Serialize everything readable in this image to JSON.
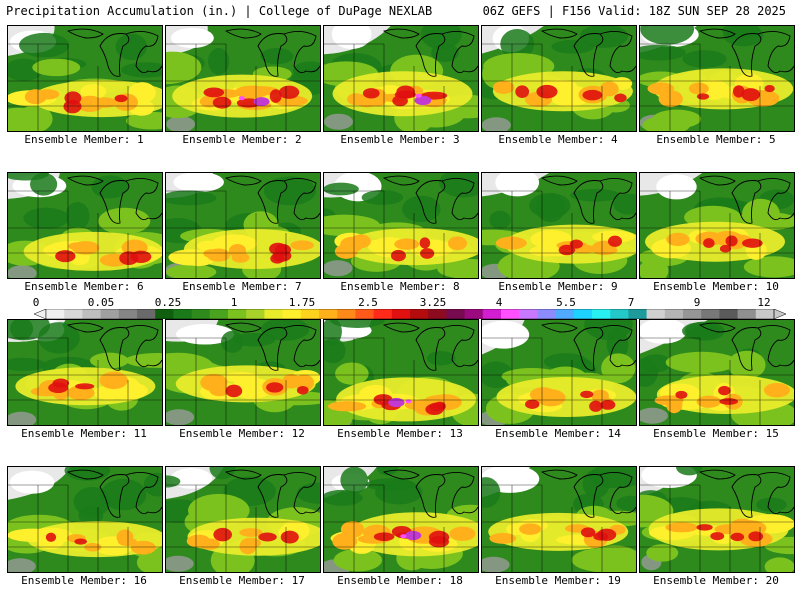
{
  "header": {
    "title_left": "Precipitation Accumulation (in.) | College of DuPage NEXLAB",
    "title_right": "06Z GEFS | F156 Valid: 18Z SUN SEP 28 2025"
  },
  "members": [
    {
      "label": "Ensemble Member: 1",
      "intensity": 0.45
    },
    {
      "label": "Ensemble Member: 2",
      "intensity": 0.75
    },
    {
      "label": "Ensemble Member: 3",
      "intensity": 0.85
    },
    {
      "label": "Ensemble Member: 4",
      "intensity": 0.6
    },
    {
      "label": "Ensemble Member: 5",
      "intensity": 0.65
    },
    {
      "label": "Ensemble Member: 6",
      "intensity": 0.55
    },
    {
      "label": "Ensemble Member: 7",
      "intensity": 0.6
    },
    {
      "label": "Ensemble Member: 8",
      "intensity": 0.45
    },
    {
      "label": "Ensemble Member: 9",
      "intensity": 0.55
    },
    {
      "label": "Ensemble Member: 10",
      "intensity": 0.6
    },
    {
      "label": "Ensemble Member: 11",
      "intensity": 0.5
    },
    {
      "label": "Ensemble Member: 12",
      "intensity": 0.45
    },
    {
      "label": "Ensemble Member: 13",
      "intensity": 0.8
    },
    {
      "label": "Ensemble Member: 14",
      "intensity": 0.6
    },
    {
      "label": "Ensemble Member: 15",
      "intensity": 0.55
    },
    {
      "label": "Ensemble Member: 16",
      "intensity": 0.4
    },
    {
      "label": "Ensemble Member: 17",
      "intensity": 0.5
    },
    {
      "label": "Ensemble Member: 18",
      "intensity": 0.8
    },
    {
      "label": "Ensemble Member: 19",
      "intensity": 0.5
    },
    {
      "label": "Ensemble Member: 20",
      "intensity": 0.7
    }
  ],
  "colorbar": {
    "labels": [
      "0",
      "0.05",
      "0.25",
      "1",
      "1.75",
      "2.5",
      "3.25",
      "4",
      "5.5",
      "7",
      "9",
      "12"
    ],
    "colors": [
      "#f0f0f0",
      "#d8d8d8",
      "#bebebe",
      "#a0a0a0",
      "#858585",
      "#6a6a6a",
      "#0f5f0f",
      "#1a7a1a",
      "#2f8a1e",
      "#4aa31f",
      "#7cc21f",
      "#a8d22a",
      "#e8ec2a",
      "#fff02e",
      "#ffd21e",
      "#ffb01a",
      "#ff8a1a",
      "#ff5a1a",
      "#ff2a1a",
      "#e01010",
      "#b40c0c",
      "#8c0b1e",
      "#780a50",
      "#9c0a80",
      "#d21ed2",
      "#ff50ff",
      "#c878ff",
      "#8c8cff",
      "#50aaff",
      "#1ed2ff",
      "#28f0f0",
      "#23c8c8",
      "#1e9b9b",
      "#d0d0d0",
      "#b4b4b4",
      "#969696",
      "#787878",
      "#5a5a5a",
      "#909090",
      "#c8c8c8"
    ]
  }
}
